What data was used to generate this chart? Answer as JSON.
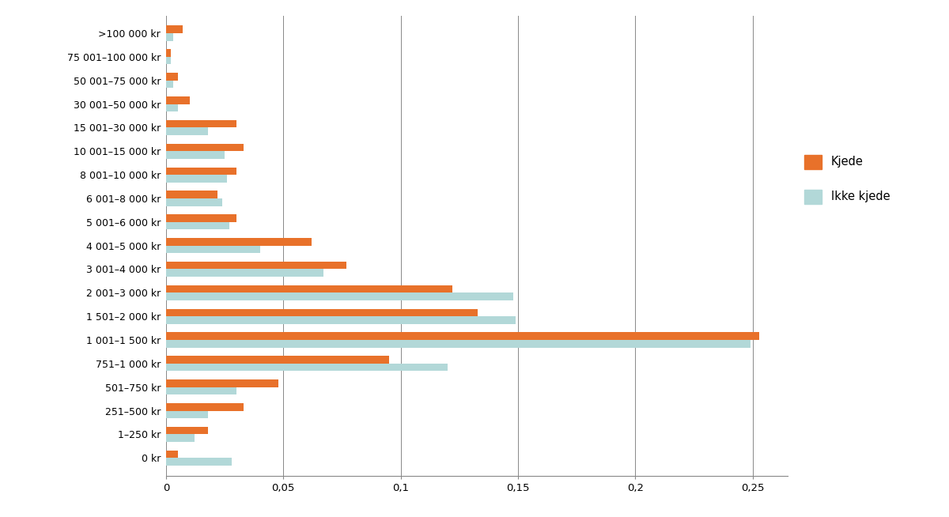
{
  "categories": [
    "0 kr",
    "1–250 kr",
    "251–500 kr",
    "501–750 kr",
    "751–1 000 kr",
    "1 001–1 500 kr",
    "1 501–2 000 kr",
    "2 001–3 000 kr",
    "3 001–4 000 kr",
    "4 001–5 000 kr",
    "5 001–6 000 kr",
    "6 001–8 000 kr",
    "8 001–10 000 kr",
    "10 001–15 000 kr",
    "15 001–30 000 kr",
    "30 001–50 000 kr",
    "50 001–75 000 kr",
    "75 001–100 000 kr",
    ">100 000 kr"
  ],
  "kjede": [
    0.005,
    0.018,
    0.033,
    0.048,
    0.095,
    0.253,
    0.133,
    0.122,
    0.077,
    0.062,
    0.03,
    0.022,
    0.03,
    0.033,
    0.03,
    0.01,
    0.005,
    0.002,
    0.007
  ],
  "ikke_kjede": [
    0.028,
    0.012,
    0.018,
    0.03,
    0.12,
    0.249,
    0.149,
    0.148,
    0.067,
    0.04,
    0.027,
    0.024,
    0.026,
    0.025,
    0.018,
    0.005,
    0.003,
    0.002,
    0.003
  ],
  "kjede_color": "#E8712A",
  "ikke_kjede_color": "#B2D8D8",
  "bar_height": 0.32,
  "xlim": [
    0,
    0.265
  ],
  "xticks": [
    0,
    0.05,
    0.1,
    0.15,
    0.2,
    0.25
  ],
  "xticklabels": [
    "0",
    "0,05",
    "0,1",
    "0,15",
    "0,2",
    "0,25"
  ],
  "legend_kjede": "Kjede",
  "legend_ikke_kjede": "Ikke kjede",
  "background_color": "#ffffff",
  "grid_color": "#888888",
  "label_fontsize": 9,
  "tick_fontsize": 9.5
}
